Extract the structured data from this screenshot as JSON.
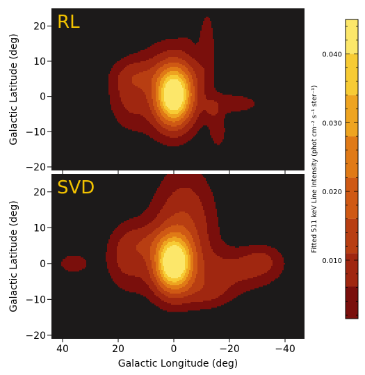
{
  "chart_data": [
    {
      "type": "heatmap",
      "panel_label": "RL",
      "xlabel": "",
      "ylabel": "Galactic Latitude (deg)",
      "xlim": [
        44,
        -47
      ],
      "ylim": [
        -21,
        25
      ],
      "yticks": [
        -20,
        -10,
        0,
        10,
        20
      ],
      "xticks": [
        40,
        20,
        0,
        -20,
        -40
      ],
      "colormap": [
        "#7a0f0c",
        "#a02710",
        "#b83e12",
        "#cf5914",
        "#e07a16",
        "#eea420",
        "#f7cb34",
        "#fce76a"
      ],
      "background": "#1c1a1a",
      "sources": [
        {
          "x": 0,
          "y": 0,
          "amp": 0.045,
          "sx": 4.2,
          "sy": 5.2
        },
        {
          "x": 1,
          "y": 2,
          "amp": 0.008,
          "sx": 9,
          "sy": 9
        },
        {
          "x": 16,
          "y": 0,
          "amp": 0.006,
          "sx": 5,
          "sy": 6
        },
        {
          "x": 13,
          "y": 6,
          "amp": 0.005,
          "sx": 6,
          "sy": 3
        },
        {
          "x": -2,
          "y": 6,
          "amp": 0.004,
          "sx": 6,
          "sy": 4
        },
        {
          "x": -22,
          "y": -2,
          "amp": 0.004,
          "sx": 8,
          "sy": 2.2
        },
        {
          "x": -14,
          "y": -4,
          "amp": 0.0035,
          "sx": 2,
          "sy": 2.2
        },
        {
          "x": -16,
          "y": -10,
          "amp": 0.004,
          "sx": 2.2,
          "sy": 3.5
        },
        {
          "x": -12,
          "y": 16,
          "amp": 0.004,
          "sx": 2,
          "sy": 7
        },
        {
          "x": -4,
          "y": 15,
          "amp": 0.0025,
          "sx": 1.5,
          "sy": 1
        }
      ]
    },
    {
      "type": "heatmap",
      "panel_label": "SVD",
      "xlabel": "Galactic Longitude (deg)",
      "ylabel": "Galactic Latitude (deg)",
      "xlim": [
        44,
        -47
      ],
      "ylim": [
        -21,
        25
      ],
      "yticks": [
        -20,
        -10,
        0,
        10,
        20
      ],
      "xticks": [
        40,
        20,
        0,
        -20,
        -40
      ],
      "colormap": [
        "#7a0f0c",
        "#a02710",
        "#b83e12",
        "#cf5914",
        "#e07a16",
        "#eea420",
        "#f7cb34",
        "#fce76a"
      ],
      "background": "#1c1a1a",
      "sources": [
        {
          "x": 0,
          "y": 0,
          "amp": 0.045,
          "sx": 4.3,
          "sy": 5.0
        },
        {
          "x": 0,
          "y": 2,
          "amp": 0.009,
          "sx": 9,
          "sy": 8
        },
        {
          "x": -4,
          "y": 14,
          "amp": 0.008,
          "sx": 7,
          "sy": 9
        },
        {
          "x": 17,
          "y": 2,
          "amp": 0.007,
          "sx": 5,
          "sy": 6
        },
        {
          "x": -22,
          "y": -2,
          "amp": 0.007,
          "sx": 10,
          "sy": 4
        },
        {
          "x": -32,
          "y": 1,
          "amp": 0.005,
          "sx": 5,
          "sy": 3
        },
        {
          "x": -12,
          "y": -8,
          "amp": 0.006,
          "sx": 6,
          "sy": 3
        },
        {
          "x": 36,
          "y": 0,
          "amp": 0.005,
          "sx": 4,
          "sy": 2
        },
        {
          "x": 10,
          "y": 6,
          "amp": 0.004,
          "sx": 5,
          "sy": 3
        }
      ]
    }
  ],
  "colorbar": {
    "title": "Fitted 511 keV Line Intensity (phot cm⁻² s⁻¹ ster⁻¹)",
    "range": [
      0.0015,
      0.045
    ],
    "ticks": [
      0.01,
      0.02,
      0.03,
      0.04
    ],
    "tick_labels": [
      "0.010",
      "0.020",
      "0.030",
      "0.040"
    ],
    "levels": [
      0.0027,
      0.0062,
      0.011,
      0.016,
      0.022,
      0.028,
      0.034,
      0.04
    ],
    "colors": [
      "#7a0f0c",
      "#a02710",
      "#b83e12",
      "#cf5914",
      "#e07a16",
      "#eea420",
      "#f7cb34",
      "#fce76a"
    ]
  }
}
